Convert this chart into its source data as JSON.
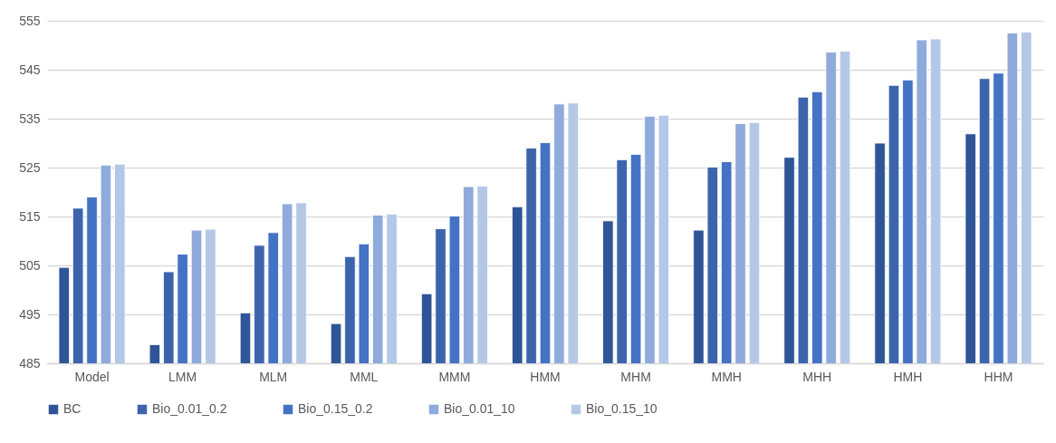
{
  "chart_data": {
    "type": "bar",
    "categories": [
      "Model",
      "LMM",
      "MLM",
      "MML",
      "MMM",
      "HMM",
      "MHM",
      "MMH",
      "MHH",
      "HMH",
      "HHM"
    ],
    "series": [
      {
        "name": "BC",
        "color": "#2f5597",
        "values": [
          504.6,
          488.8,
          495.3,
          493.1,
          499.2,
          517.0,
          514.1,
          512.2,
          527.1,
          530.0,
          531.9
        ]
      },
      {
        "name": "Bio_0.01_0.2",
        "color": "#3b64ad",
        "values": [
          516.7,
          503.7,
          509.1,
          506.8,
          512.5,
          529.0,
          526.6,
          525.1,
          539.4,
          541.8,
          543.2
        ]
      },
      {
        "name": "Bio_0.15_0.2",
        "color": "#4472c4",
        "values": [
          519.0,
          507.3,
          511.7,
          509.4,
          515.1,
          530.1,
          527.7,
          526.2,
          540.5,
          542.9,
          544.3
        ]
      },
      {
        "name": "Bio_0.01_10",
        "color": "#8faadc",
        "values": [
          525.5,
          512.2,
          517.6,
          515.3,
          521.1,
          538.0,
          535.5,
          534.0,
          548.6,
          551.1,
          552.5
        ]
      },
      {
        "name": "Bio_0.15_10",
        "color": "#b4c7e7",
        "values": [
          525.7,
          512.4,
          517.8,
          515.5,
          521.2,
          538.2,
          535.7,
          534.2,
          548.8,
          551.3,
          552.7
        ]
      }
    ],
    "ylim": [
      485,
      555
    ],
    "yticks": [
      485,
      495,
      505,
      515,
      525,
      535,
      545,
      555
    ],
    "grid": "y",
    "legend": "bottom"
  }
}
